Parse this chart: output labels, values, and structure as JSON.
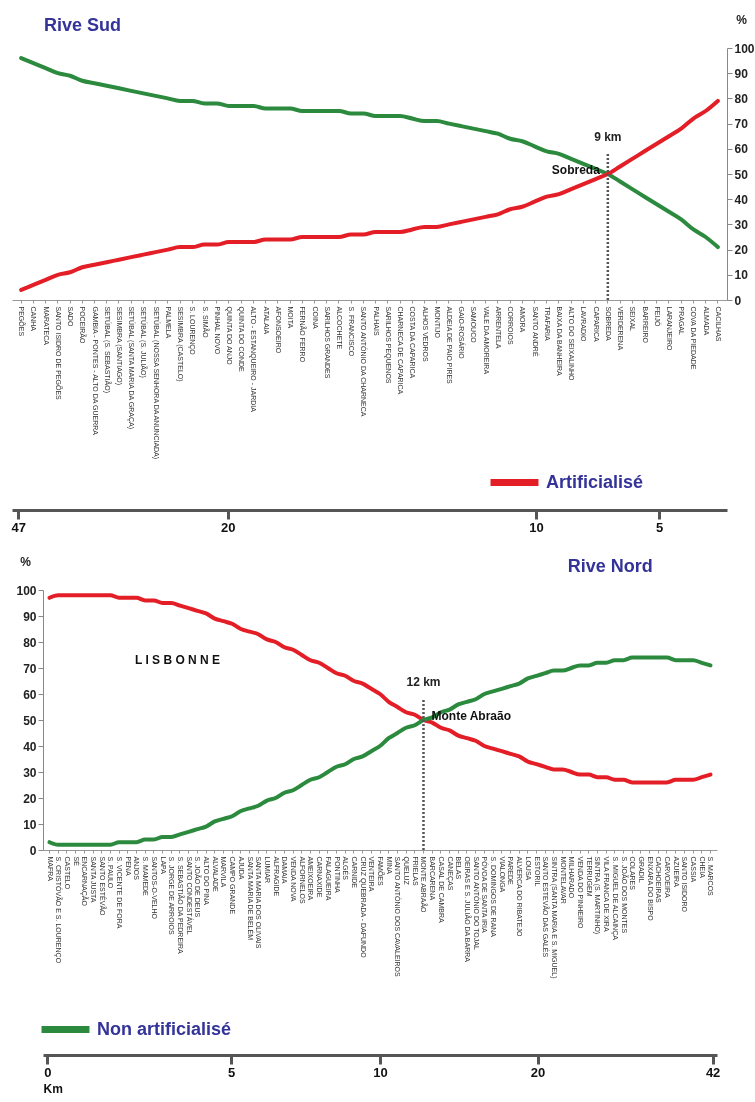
{
  "chart_data": [
    {
      "type": "line",
      "title": "Rive Sud",
      "ylabel": "%",
      "ylim": [
        0,
        100
      ],
      "yticks": [
        0,
        10,
        20,
        30,
        40,
        50,
        60,
        70,
        80,
        90,
        100
      ],
      "grid": false,
      "legend": "bottom right",
      "categories": [
        "PEGÕES",
        "CANHA",
        "MARATECA",
        "SANTO ISIDRO DE PEGÕES",
        "SADO",
        "POCEIRÃO",
        "GAMBIA - PONTES - ALTO DA GUERRA",
        "SETÚBAL (S. SEBASTIÃO)",
        "SESIMBRA (SANTIAGO)",
        "SETÚBAL (SANTA MARIA DA GRAÇA)",
        "SETÚBAL (S. JULIÃO)",
        "SETÚBAL (NOSSA SENHORA DA ANUNCIADA)",
        "PALMELA",
        "SESIMBRA (CASTELO)",
        "S. LOURENÇO",
        "S. SIMÃO",
        "PINHAL NOVO",
        "QUINTA DO ANJO",
        "QUINTA DO CONDE",
        "ALTO - ESTANQUEIRO - JARDIA",
        "ATALAIA",
        "AFONSOEIRO",
        "MOITA",
        "FERNÃO FERRO",
        "COINA",
        "SARILHOS GRANDES",
        "ALCOCHETE",
        "S. FRANCISCO",
        "SANTO ANTÓNIO DA CHARNECA",
        "PALHAIS",
        "SARILHOS PEQUENOS",
        "CHARNECA DE CAPARICA",
        "COSTA DA CAPARICA",
        "ALHOS VEDROS",
        "MONTIJO",
        "ALDEIA DE PAIO PIRES",
        "GAIO-ROSÁRIO",
        "SAMOUCO",
        "VALE DA AMOREIRA",
        "ARRENTELA",
        "CORROIOS",
        "AMORA",
        "SANTO ANDRÉ",
        "TRAFARIA",
        "BAIXA DA BANHEIRA",
        "ALTO DO SEIXALINHO",
        "LAVRADIO",
        "CAPARICA",
        "SOBREDA",
        "VERDERENA",
        "SEIXAL",
        "BARREIRO",
        "FEIJÓ",
        "LARANJEIRO",
        "PRAGAL",
        "COVA DA PIEDADE",
        "ALMADA",
        "CACILHAS"
      ],
      "series": [
        {
          "color": "#2b8a3e",
          "values": [
            96,
            94,
            92,
            90,
            89,
            87,
            86,
            85,
            84,
            83,
            82,
            81,
            80,
            79,
            79,
            78,
            78,
            77,
            77,
            77,
            76,
            76,
            76,
            75,
            75,
            75,
            75,
            74,
            74,
            73,
            73,
            73,
            72,
            71,
            71,
            70,
            69,
            68,
            67,
            66,
            64,
            63,
            61,
            59,
            58,
            56,
            54,
            52,
            50,
            47,
            44,
            41,
            38,
            35,
            32,
            28,
            25,
            21
          ]
        },
        {
          "name": "Artificialisé",
          "color": "#e41e26",
          "values": [
            4,
            6,
            8,
            10,
            11,
            13,
            14,
            15,
            16,
            17,
            18,
            19,
            20,
            21,
            21,
            22,
            22,
            23,
            23,
            23,
            24,
            24,
            24,
            25,
            25,
            25,
            25,
            26,
            26,
            27,
            27,
            27,
            28,
            29,
            29,
            30,
            31,
            32,
            33,
            34,
            36,
            37,
            39,
            41,
            42,
            44,
            46,
            48,
            50,
            53,
            56,
            59,
            62,
            65,
            68,
            72,
            75,
            79
          ]
        }
      ],
      "ref_lines": [
        {
          "axis": "x",
          "value": "SOBREDA",
          "label": "9 km",
          "line_style": "dotted"
        }
      ],
      "annotations": [
        {
          "text": "Sobreda",
          "x": "SOBREDA",
          "y": 50
        },
        "47",
        "20",
        "10",
        "5"
      ]
    },
    {
      "type": "line",
      "title": "Rive Nord",
      "ylabel": "%",
      "ylim": [
        0,
        100
      ],
      "yticks": [
        0,
        10,
        20,
        30,
        40,
        50,
        60,
        70,
        80,
        90,
        100
      ],
      "grid": false,
      "legend": "bottom left",
      "categories": [
        "MAFRA",
        "S. CRISTÓVÃO E S. LOURENÇO",
        "CASTELO",
        "SÉ",
        "ENCARNAÇÃO",
        "SANTA JUSTA",
        "SANTO ESTÊVÃO",
        "S. PAULO",
        "S. VICENTE DE FORA",
        "PENA",
        "ANJOS",
        "S. MAMEDE",
        "SANTOS-O-VELHO",
        "LAPA",
        "S. JORGE DE ARROIOS",
        "S. SEBASTIÃO DA PEDREIRA",
        "SANTO CONDESTÁVEL",
        "S. JOÃO DE DEUS",
        "ALTO DO PINA",
        "ALVALADE",
        "MARVILA",
        "CAMPO GRANDE",
        "AJUDA",
        "SANTA MARIA DE BELÉM",
        "SANTA MARIA DOS OLIVAIS",
        "LUMIAR",
        "ALFRAGIDE",
        "DAMAIA",
        "VENDA NOVA",
        "ALFORNELOS",
        "AMEIXOEIRA",
        "CARNAXIDE",
        "FALAGUEIRA",
        "PONTINHA",
        "ALGÉS",
        "CARNIDE",
        "CRUZ QUEBRADA - DAFUNDO",
        "VENTEIRA",
        "FAMÕES",
        "MINA",
        "SANTO ANTÓNIO DOS CAVALEIROS",
        "QUELUZ",
        "FRIELAS",
        "MONTE ABRAÃO",
        "BARCARENA",
        "CASAL DE CAMBRA",
        "CANEÇAS",
        "BELAS",
        "OEIRAS E S. JULIÃO DA BARRA",
        "SANTO ANTÓNIO DO TOJAL",
        "PÓVOA DE SANTA IRIA",
        "S. DOMINGOS DE RANA",
        "VIALONGA",
        "PAREDE",
        "ALVERCA DO RIBATEJO",
        "LOUSA",
        "ESTORIL",
        "SANTO ESTEVÃO DAS GALÉS",
        "SINTRA (SANTA MARIA E S. MIGUEL)",
        "MONTELAVAR",
        "MILHARADO",
        "VENDA DO PINHEIRO",
        "TERRUGEM",
        "SINTRA (S. MARTINHO)",
        "VILA FRANCA DE XIRA",
        "S. MIGUEL DE ALCAINÇA",
        "S. JOÃO DOS MONTES",
        "COLARES",
        "GRADIL",
        "ENXARA DO BISPO",
        "CACHOEIRAS",
        "CARVOEIRA",
        "AZUEIRA",
        "SANTO ISIDORO",
        "CASSIA",
        "CHEIA",
        "S. MARCOS"
      ],
      "series": [
        {
          "color": "#e41e26",
          "values": [
            97,
            98,
            98,
            98,
            98,
            98,
            98,
            98,
            97,
            97,
            97,
            96,
            96,
            95,
            95,
            94,
            93,
            92,
            91,
            89,
            88,
            87,
            85,
            84,
            83,
            81,
            80,
            78,
            77,
            75,
            73,
            72,
            70,
            68,
            67,
            65,
            64,
            62,
            60,
            57,
            55,
            53,
            52,
            50,
            49,
            47,
            46,
            44,
            43,
            42,
            40,
            39,
            38,
            37,
            36,
            34,
            33,
            32,
            31,
            31,
            30,
            29,
            29,
            28,
            28,
            27,
            27,
            26,
            26,
            26,
            26,
            26,
            27,
            27,
            27,
            28,
            29
          ]
        },
        {
          "name": "Non artificialisé",
          "color": "#2b8a3e",
          "values": [
            3,
            2,
            2,
            2,
            2,
            2,
            2,
            2,
            3,
            3,
            3,
            4,
            4,
            5,
            5,
            6,
            7,
            8,
            9,
            11,
            12,
            13,
            15,
            16,
            17,
            19,
            20,
            22,
            23,
            25,
            27,
            28,
            30,
            32,
            33,
            35,
            36,
            38,
            40,
            43,
            45,
            47,
            48,
            50,
            51,
            53,
            54,
            56,
            57,
            58,
            60,
            61,
            62,
            63,
            64,
            66,
            67,
            68,
            69,
            69,
            70,
            71,
            71,
            72,
            72,
            73,
            73,
            74,
            74,
            74,
            74,
            74,
            73,
            73,
            73,
            72,
            71
          ]
        }
      ],
      "ref_lines": [
        {
          "axis": "x",
          "value": "MONTE ABRAÃO",
          "label": "12 km",
          "line_style": "dotted"
        }
      ],
      "annotations": [
        "L I S B O N N E",
        "0",
        "5",
        "10",
        "20",
        "42",
        "Km",
        {
          "text": "Monte Abraão",
          "x": "MONTE ABRAÃO",
          "y": 50
        }
      ]
    }
  ]
}
